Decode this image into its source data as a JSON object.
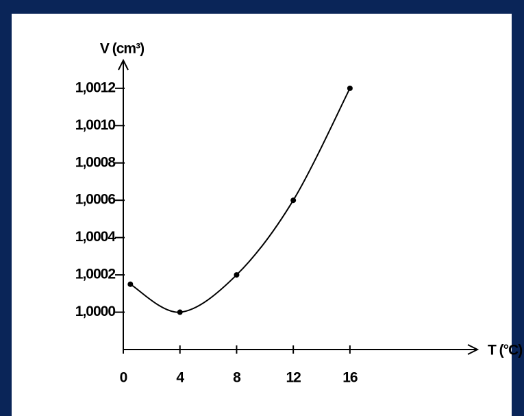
{
  "chart_data": {
    "type": "line",
    "y_label": "V (cm³)",
    "x_label": "T (°C)",
    "x": [
      0.5,
      4,
      8,
      12,
      16
    ],
    "series": [
      {
        "color": "#000000",
        "values": [
          1.00015,
          1.0,
          1.0002,
          1.0006,
          1.0012
        ]
      }
    ],
    "xlim": [
      0,
      25
    ],
    "xticks": [
      0,
      4,
      8,
      12,
      16
    ],
    "ylim": [
      0.9998,
      1.00135
    ],
    "yticks": [
      {
        "value": 1.0,
        "label": "1,0000"
      },
      {
        "value": 1.0002,
        "label": "1,0002"
      },
      {
        "value": 1.0004,
        "label": "1,0004"
      },
      {
        "value": 1.0006,
        "label": "1,0006"
      },
      {
        "value": 1.0008,
        "label": "1,0008"
      },
      {
        "value": 1.001,
        "label": "1,0010"
      },
      {
        "value": 1.0012,
        "label": "1,0012"
      }
    ],
    "grid": false
  }
}
